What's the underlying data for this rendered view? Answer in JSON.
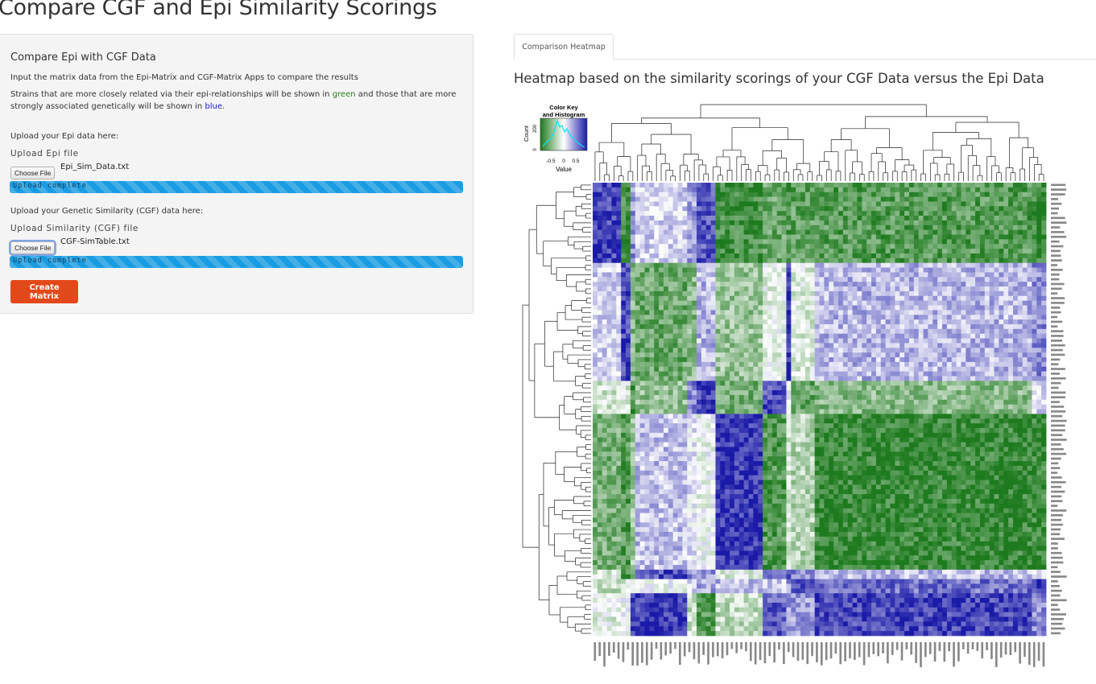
{
  "page": {
    "title": "Compare CGF and Epi Similarity Scorings"
  },
  "sidebar": {
    "heading": "Compare Epi with CGF Data",
    "intro": "Input the matrix data from the Epi-Matrix and CGF-Matrix Apps to compare the results",
    "desc_part1": "Strains that are more closely related via their epi-relationships will be shown in ",
    "desc_green": "green",
    "desc_part2": " and those that are more strongly associated genetically will be shown in ",
    "desc_blue": "blue",
    "desc_end": ".",
    "epi": {
      "prompt": "Upload your Epi data here:",
      "label": "Upload Epi file",
      "button": "Choose File",
      "filename": "Epi_Sim_Data.txt",
      "progress_text": "Upload complete",
      "progress": 1.0
    },
    "cgf": {
      "prompt": "Upload your Genetic Similarity (CGF) data here:",
      "label": "Upload Similarity (CGF) file",
      "button": "Choose File",
      "filename": "CGF-SimTable.txt",
      "progress_text": "Upload complete",
      "progress": 1.0
    },
    "create_button": "Create Matrix",
    "colors": {
      "accent_button": "#e2491a",
      "progress": "#1a9ce2",
      "green_word": "#2a7a22",
      "blue_word": "#1c1cc8"
    }
  },
  "main": {
    "tabs": [
      {
        "label": "Comparison Heatmap",
        "active": true
      }
    ],
    "heading": "Heatmap based on the similarity scorings of your CGF Data versus the Epi Data"
  },
  "chart_data": {
    "type": "heatmap",
    "title": "",
    "colors": {
      "low": "#1e7a1e",
      "mid": "#ffffff",
      "high": "#1a1aa8"
    },
    "color_key": {
      "title": "Color Key",
      "subtitle": "and Histogram",
      "xlabel": "Value",
      "ylabel": "Count",
      "x_ticks": [
        "-0.5",
        "0",
        "0.5"
      ],
      "y_ticks": [
        "0",
        "200"
      ]
    },
    "n_rows": 96,
    "n_cols": 96,
    "dendrograms": {
      "rows": true,
      "columns": true
    }
  }
}
